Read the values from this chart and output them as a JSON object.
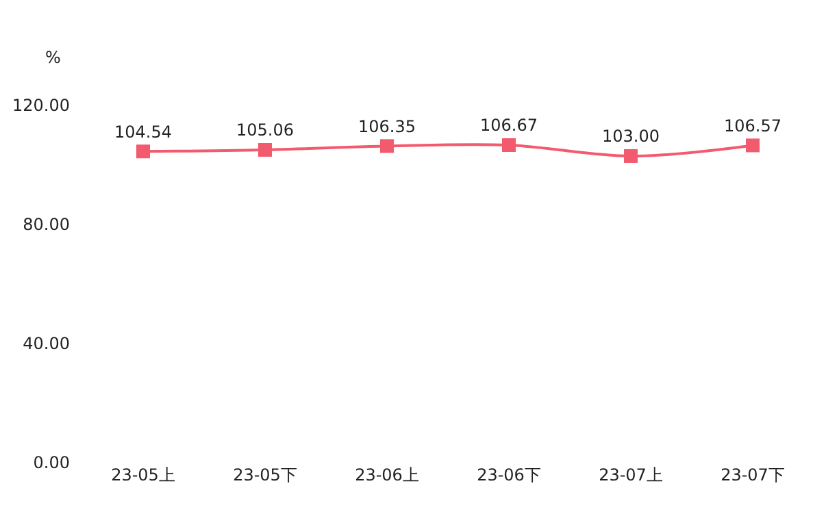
{
  "chart_data": {
    "type": "line",
    "ylabel": "%",
    "categories": [
      "23-05上",
      "23-05下",
      "23-06上",
      "23-06下",
      "23-07上",
      "23-07下"
    ],
    "series": [
      {
        "color": "#f25a6e",
        "values": [
          104.54,
          105.06,
          106.35,
          106.67,
          103.0,
          106.57
        ],
        "value_labels": [
          "104.54",
          "105.06",
          "106.35",
          "106.67",
          "103.00",
          "106.57"
        ]
      }
    ],
    "ylim": [
      0,
      120
    ],
    "yticks": [
      {
        "value": 0,
        "label": "0.00"
      },
      {
        "value": 40,
        "label": "40.00"
      },
      {
        "value": 80,
        "label": "80.00"
      },
      {
        "value": 120,
        "label": "120.00"
      }
    ],
    "marker": "square",
    "line_style": "solid"
  }
}
